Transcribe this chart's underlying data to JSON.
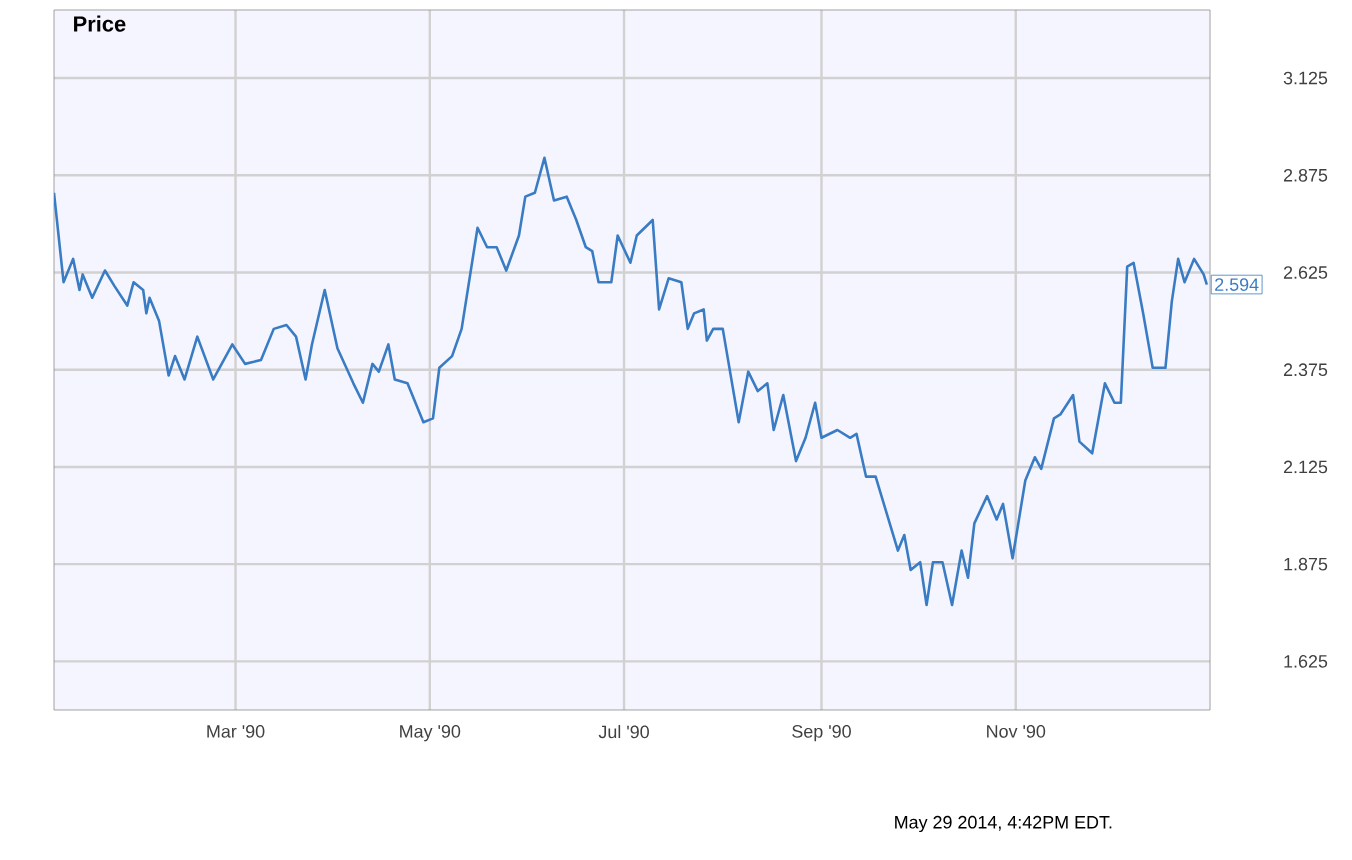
{
  "chart_data": {
    "type": "line",
    "title": "Price",
    "annotations": [
      "May 29 2014, 4:42PM EDT.",
      {
        "text": "2.594",
        "x": "1990-12-31",
        "y": 2.594
      }
    ],
    "x": [
      "1990-01-03",
      "1990-01-06",
      "1990-01-09",
      "1990-01-11",
      "1990-01-12",
      "1990-01-15",
      "1990-01-19",
      "1990-01-22",
      "1990-01-26",
      "1990-01-28",
      "1990-01-31",
      "1990-02-01",
      "1990-02-02",
      "1990-02-05",
      "1990-02-08",
      "1990-02-10",
      "1990-02-13",
      "1990-02-17",
      "1990-02-22",
      "1990-02-28",
      "1990-03-04",
      "1990-03-09",
      "1990-03-13",
      "1990-03-17",
      "1990-03-20",
      "1990-03-23",
      "1990-03-25",
      "1990-03-29",
      "1990-04-02",
      "1990-04-07",
      "1990-04-10",
      "1990-04-13",
      "1990-04-15",
      "1990-04-18",
      "1990-04-20",
      "1990-04-24",
      "1990-04-29",
      "1990-05-02",
      "1990-05-04",
      "1990-05-08",
      "1990-05-11",
      "1990-05-16",
      "1990-05-19",
      "1990-05-22",
      "1990-05-25",
      "1990-05-29",
      "1990-05-31",
      "1990-06-03",
      "1990-06-06",
      "1990-06-09",
      "1990-06-13",
      "1990-06-16",
      "1990-06-19",
      "1990-06-21",
      "1990-06-23",
      "1990-06-27",
      "1990-06-29",
      "1990-07-03",
      "1990-07-05",
      "1990-07-10",
      "1990-07-12",
      "1990-07-15",
      "1990-07-19",
      "1990-07-21",
      "1990-07-23",
      "1990-07-26",
      "1990-07-27",
      "1990-07-29",
      "1990-08-01",
      "1990-08-06",
      "1990-08-09",
      "1990-08-12",
      "1990-08-15",
      "1990-08-17",
      "1990-08-20",
      "1990-08-24",
      "1990-08-27",
      "1990-08-30",
      "1990-09-01",
      "1990-09-06",
      "1990-09-10",
      "1990-09-12",
      "1990-09-15",
      "1990-09-18",
      "1990-09-25",
      "1990-09-27",
      "1990-09-29",
      "1990-10-02",
      "1990-10-04",
      "1990-10-06",
      "1990-10-09",
      "1990-10-12",
      "1990-10-15",
      "1990-10-17",
      "1990-10-19",
      "1990-10-23",
      "1990-10-26",
      "1990-10-28",
      "1990-10-31",
      "1990-11-04",
      "1990-11-07",
      "1990-11-09",
      "1990-11-13",
      "1990-11-15",
      "1990-11-19",
      "1990-11-21",
      "1990-11-25",
      "1990-11-29",
      "1990-12-02",
      "1990-12-04",
      "1990-12-06",
      "1990-12-08",
      "1990-12-11",
      "1990-12-14",
      "1990-12-18",
      "1990-12-20",
      "1990-12-22",
      "1990-12-24",
      "1990-12-27",
      "1990-12-30",
      "1990-12-31"
    ],
    "series": [
      {
        "color": "#3a7cc4",
        "values": [
          2.83,
          2.6,
          2.66,
          2.58,
          2.62,
          2.56,
          2.63,
          2.59,
          2.54,
          2.6,
          2.58,
          2.52,
          2.56,
          2.5,
          2.36,
          2.41,
          2.35,
          2.46,
          2.35,
          2.44,
          2.39,
          2.4,
          2.48,
          2.49,
          2.46,
          2.35,
          2.44,
          2.58,
          2.43,
          2.34,
          2.29,
          2.39,
          2.37,
          2.44,
          2.35,
          2.34,
          2.24,
          2.25,
          2.38,
          2.41,
          2.48,
          2.74,
          2.69,
          2.69,
          2.63,
          2.72,
          2.82,
          2.83,
          2.92,
          2.81,
          2.82,
          2.76,
          2.69,
          2.68,
          2.6,
          2.6,
          2.72,
          2.65,
          2.72,
          2.76,
          2.53,
          2.61,
          2.6,
          2.48,
          2.52,
          2.53,
          2.45,
          2.48,
          2.48,
          2.24,
          2.37,
          2.32,
          2.34,
          2.22,
          2.31,
          2.14,
          2.2,
          2.29,
          2.2,
          2.22,
          2.2,
          2.21,
          2.1,
          2.1,
          1.91,
          1.95,
          1.86,
          1.88,
          1.77,
          1.88,
          1.88,
          1.77,
          1.91,
          1.84,
          1.98,
          2.05,
          1.99,
          2.03,
          1.89,
          2.09,
          2.15,
          2.12,
          2.25,
          2.26,
          2.31,
          2.19,
          2.16,
          2.34,
          2.29,
          2.29,
          2.64,
          2.65,
          2.52,
          2.38,
          2.38,
          2.55,
          2.66,
          2.6,
          2.66,
          2.62,
          2.594
        ]
      }
    ],
    "xlim": [
      "1990-01-03",
      "1991-01-01"
    ],
    "xticks": [
      {
        "value": "1990-03-01",
        "label": "Mar '90"
      },
      {
        "value": "1990-05-01",
        "label": "May '90"
      },
      {
        "value": "1990-07-01",
        "label": "Jul '90"
      },
      {
        "value": "1990-09-01",
        "label": "Sep '90"
      },
      {
        "value": "1990-11-01",
        "label": "Nov '90"
      }
    ],
    "ylim": [
      1.5,
      3.3
    ],
    "yticks": [
      1.625,
      1.875,
      2.125,
      2.375,
      2.625,
      2.875,
      3.125
    ],
    "grid": true,
    "marker": "none",
    "line_style": "solid"
  }
}
